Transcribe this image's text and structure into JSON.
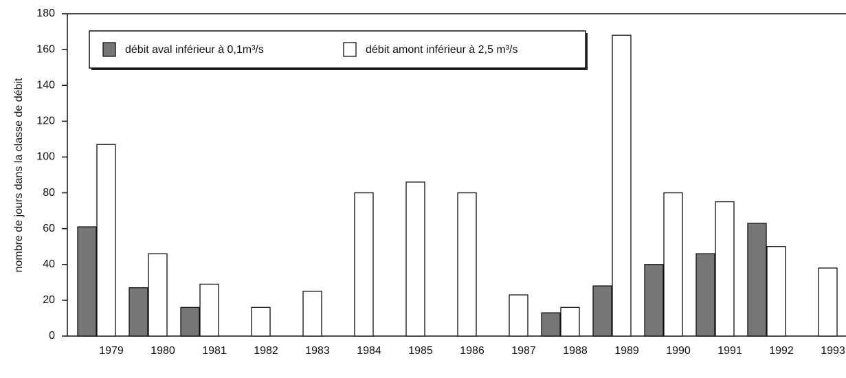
{
  "chart_data": {
    "type": "bar",
    "y_label": "nombre de jours dans la classe de débit",
    "categories": [
      "1979",
      "1980",
      "1981",
      "1982",
      "1983",
      "1984",
      "1985",
      "1986",
      "1987",
      "1988",
      "1989",
      "1990",
      "1991",
      "1992",
      "1993"
    ],
    "series": [
      {
        "name": "débit aval inférieur à 0,1m³/s",
        "color": "#777777",
        "values": [
          61,
          27,
          16,
          0,
          0,
          0,
          0,
          0,
          0,
          13,
          28,
          40,
          46,
          63,
          0
        ]
      },
      {
        "name": "débit amont inférieur à 2,5 m³/s",
        "color": "#ffffff",
        "values": [
          107,
          46,
          29,
          16,
          25,
          80,
          86,
          80,
          23,
          16,
          168,
          80,
          75,
          50,
          38
        ]
      }
    ],
    "ylim": [
      0,
      180
    ],
    "yticks": [
      0,
      20,
      40,
      60,
      80,
      100,
      120,
      140,
      160,
      180
    ]
  }
}
